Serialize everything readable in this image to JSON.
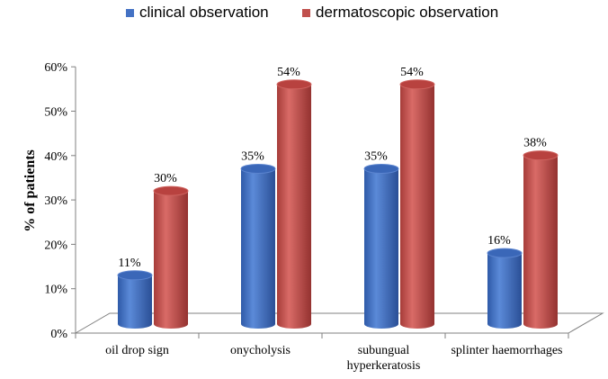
{
  "chart_data": {
    "type": "bar",
    "title": "",
    "xlabel": "",
    "ylabel": "% of patients",
    "ylim": [
      0,
      60
    ],
    "yticks": [
      "0%",
      "10%",
      "20%",
      "30%",
      "40%",
      "50%",
      "60%"
    ],
    "categories": [
      "oil drop sign",
      "onycholysis",
      "subungual hyperkeratosis",
      "splinter haemorrhages"
    ],
    "category_lines": [
      [
        "oil drop sign"
      ],
      [
        "onycholysis"
      ],
      [
        "subungual",
        "hyperkeratosis"
      ],
      [
        "splinter",
        "haemorrhages"
      ]
    ],
    "series": [
      {
        "name": "clinical observation",
        "color": "#4472C4",
        "values": [
          11,
          35,
          35,
          16
        ],
        "labels": [
          "11%",
          "35%",
          "35%",
          "16%"
        ]
      },
      {
        "name": "dermatoscopic observation",
        "color": "#C0504D",
        "values": [
          30,
          54,
          54,
          38
        ],
        "labels": [
          "30%",
          "54%",
          "54%",
          "38%"
        ]
      }
    ],
    "legend_position": "top",
    "grid": false
  }
}
